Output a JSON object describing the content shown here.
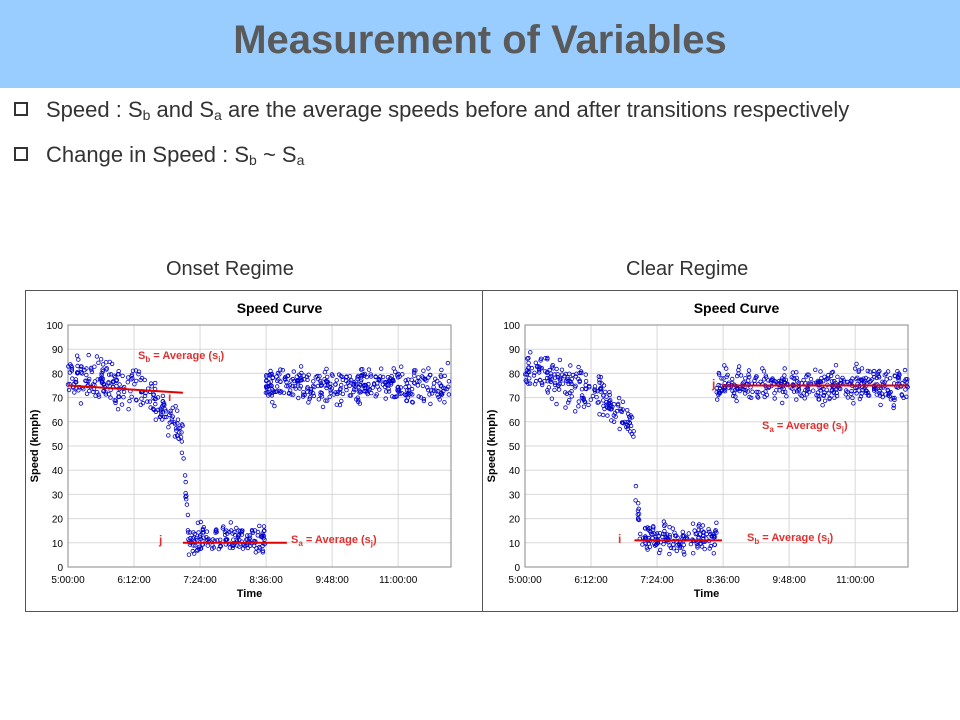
{
  "slide": {
    "title": "Measurement of Variables",
    "bullets": [
      {
        "text_parts": [
          "Speed : S",
          "b",
          " and  S",
          "a",
          " are the average speeds before and after transitions respectively"
        ]
      },
      {
        "text_parts": [
          "Change in Speed : S",
          "b",
          " ~ S",
          "a"
        ]
      }
    ],
    "onset_label": "Onset Regime",
    "clear_label": "Clear Regime"
  },
  "colors": {
    "banner": "#99ccff",
    "points": "#0000cc",
    "lines": "#e00000",
    "annotation": "#e03030"
  },
  "chart_data": [
    {
      "type": "scatter",
      "title": "Speed Curve",
      "xlabel": "Time",
      "ylabel": "Speed (kmph)",
      "x_ticks": [
        "5:00:00",
        "6:12:00",
        "7:24:00",
        "8:36:00",
        "9:48:00",
        "11:00:00"
      ],
      "y_ticks": [
        0,
        10,
        20,
        30,
        40,
        50,
        60,
        70,
        80,
        90,
        100
      ],
      "ylim": [
        0,
        100
      ],
      "xlim_hours": [
        5.0,
        12.0
      ],
      "segments": [
        {
          "from": 5.0,
          "to": 6.4,
          "mean_start": 80,
          "mean_end": 74,
          "spread": 6
        },
        {
          "from": 6.4,
          "to": 7.1,
          "mean_start": 74,
          "mean_end": 55,
          "spread": 5
        },
        {
          "from": 7.1,
          "to": 7.2,
          "mean_start": 50,
          "mean_end": 15,
          "spread": 6
        },
        {
          "from": 7.2,
          "to": 8.6,
          "mean_start": 12,
          "mean_end": 12,
          "spread": 4
        },
        {
          "from": 8.6,
          "to": 12.0,
          "mean_start": 75,
          "mean_end": 75,
          "spread": 5
        }
      ],
      "annotations": {
        "before_line": {
          "x0": 5.0,
          "y0": 75,
          "x1": 7.1,
          "y1": 72
        },
        "after_line": {
          "x0": 7.1,
          "y0": 10,
          "x1": 9.0,
          "y1": 10
        },
        "label_i": "i",
        "label_j": "j",
        "label_sb": "= Average (s",
        "label_sa": "= Average (s",
        "sb_sub_var": "i",
        "sa_sub_var": "j"
      }
    },
    {
      "type": "scatter",
      "title": "Speed Curve",
      "xlabel": "Time",
      "ylabel": "Speed (kmph)",
      "x_ticks": [
        "5:00:00",
        "6:12:00",
        "7:24:00",
        "8:36:00",
        "9:48:00",
        "11:00:00"
      ],
      "y_ticks": [
        0,
        10,
        20,
        30,
        40,
        50,
        60,
        70,
        80,
        90,
        100
      ],
      "ylim": [
        0,
        100
      ],
      "xlim_hours": [
        5.0,
        12.0
      ],
      "segments": [
        {
          "from": 5.0,
          "to": 6.4,
          "mean_start": 82,
          "mean_end": 72,
          "spread": 6
        },
        {
          "from": 6.4,
          "to": 7.0,
          "mean_start": 70,
          "mean_end": 58,
          "spread": 5
        },
        {
          "from": 7.0,
          "to": 7.1,
          "mean_start": 40,
          "mean_end": 15,
          "spread": 6
        },
        {
          "from": 7.1,
          "to": 8.5,
          "mean_start": 12,
          "mean_end": 12,
          "spread": 4
        },
        {
          "from": 8.5,
          "to": 12.0,
          "mean_start": 75,
          "mean_end": 75,
          "spread": 5
        }
      ],
      "annotations": {
        "before_line": {
          "x0": 7.0,
          "y0": 11,
          "x1": 8.6,
          "y1": 11
        },
        "after_line": {
          "x0": 8.6,
          "y0": 75,
          "x1": 12.0,
          "y1": 75
        },
        "label_i": "i",
        "label_j": "j",
        "label_sb": "= Average (s",
        "label_sa": "= Average (s",
        "sb_sub_var": "i",
        "sa_sub_var": "j"
      }
    }
  ]
}
